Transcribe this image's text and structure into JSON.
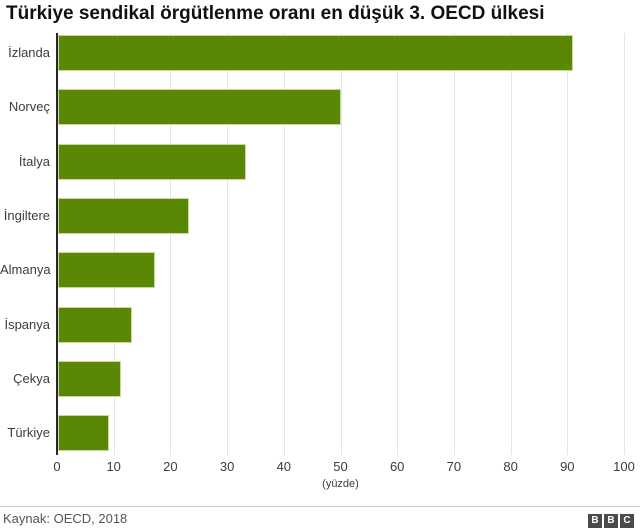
{
  "chart_data": {
    "type": "bar",
    "orientation": "horizontal",
    "title": "Türkiye sendikal örgütlenme oranı en düşük 3. OECD ülkesi",
    "categories": [
      "İzlanda",
      "Norveç",
      "İtalya",
      "İngiltere",
      "Almanya",
      "İspanya",
      "Çekya",
      "Türkiye"
    ],
    "values": [
      91,
      50,
      33.4,
      23.3,
      17.2,
      13.2,
      11.3,
      9.2
    ],
    "xlabel": "(yüzde)",
    "xlim": [
      0,
      100
    ],
    "xticks": [
      0,
      10,
      20,
      30,
      40,
      50,
      60,
      70,
      80,
      90,
      100
    ],
    "grid": true,
    "legend": "none",
    "bar_color": "#5a8805"
  },
  "footer": {
    "source": "Kaynak: OECD, 2018",
    "logo_letters": [
      "B",
      "B",
      "C"
    ],
    "logo_color": "#4a4a4c"
  }
}
